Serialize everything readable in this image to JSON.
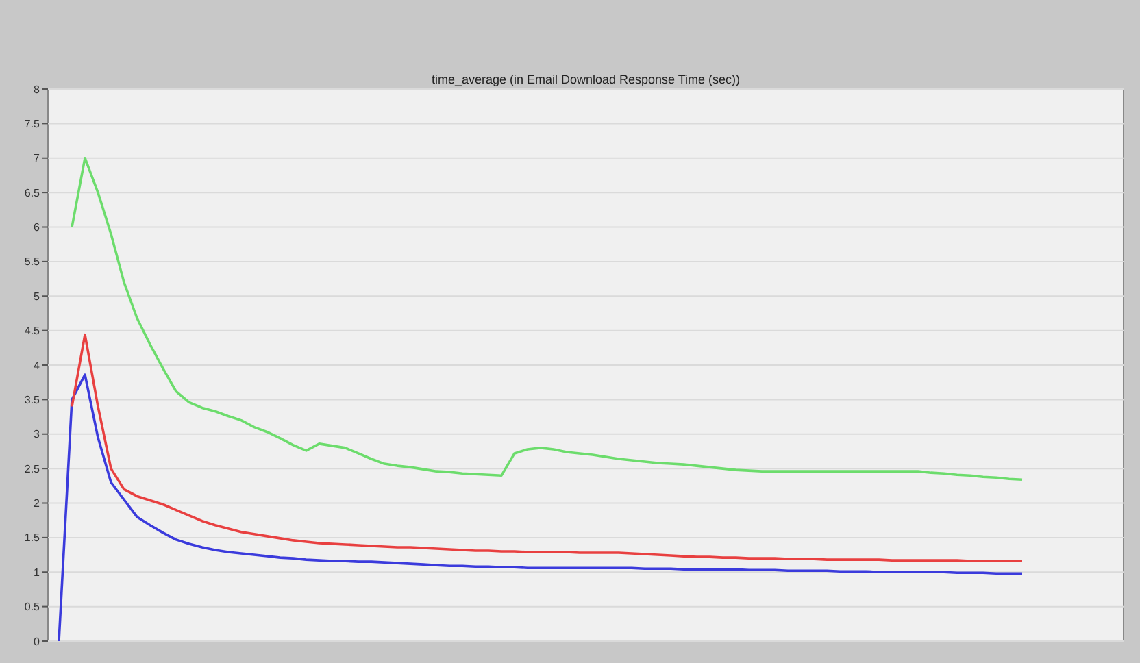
{
  "chart_data": {
    "type": "line",
    "title": "time_average (in Email Download Response Time (sec))",
    "categories": [
      null,
      null,
      null,
      null,
      null,
      null,
      null,
      null,
      null,
      null,
      null,
      null,
      null,
      null,
      null,
      null,
      null,
      null,
      null,
      null,
      null,
      null,
      null,
      null,
      null,
      null,
      null,
      null,
      null,
      null,
      null,
      null,
      null,
      null,
      null,
      null,
      null,
      null,
      null,
      null,
      null,
      null,
      null,
      null,
      null,
      null,
      null,
      null,
      null,
      null,
      null,
      null,
      null,
      null,
      null,
      null,
      null,
      null,
      null,
      null,
      null,
      null,
      null,
      null,
      null,
      null,
      null,
      null,
      null,
      null,
      null,
      null,
      null,
      null,
      null
    ],
    "ylim": [
      0,
      8
    ],
    "yticks": [
      0,
      0.5,
      1,
      1.5,
      2,
      2.5,
      3,
      3.5,
      4,
      4.5,
      5,
      5.5,
      6,
      6.5,
      7,
      7.5,
      8
    ],
    "grid": "y",
    "line_style": "solid",
    "series": [
      {
        "color": "#3b3bdc",
        "values": [
          0,
          3.5,
          3.86,
          2.95,
          2.3,
          2.05,
          1.8,
          1.68,
          1.57,
          1.47,
          1.41,
          1.36,
          1.32,
          1.29,
          1.27,
          1.25,
          1.23,
          1.21,
          1.2,
          1.18,
          1.17,
          1.16,
          1.16,
          1.15,
          1.15,
          1.14,
          1.13,
          1.12,
          1.11,
          1.1,
          1.09,
          1.09,
          1.08,
          1.08,
          1.07,
          1.07,
          1.06,
          1.06,
          1.06,
          1.06,
          1.06,
          1.06,
          1.06,
          1.06,
          1.06,
          1.05,
          1.05,
          1.05,
          1.04,
          1.04,
          1.04,
          1.04,
          1.04,
          1.03,
          1.03,
          1.03,
          1.02,
          1.02,
          1.02,
          1.02,
          1.01,
          1.01,
          1.01,
          1.0,
          1.0,
          1.0,
          1.0,
          1.0,
          1.0,
          0.99,
          0.99,
          0.99,
          0.98,
          0.98,
          0.98
        ]
      },
      {
        "color": "#e84040",
        "values": [
          null,
          3.4,
          4.44,
          3.4,
          2.5,
          2.2,
          2.1,
          2.04,
          1.98,
          1.9,
          1.82,
          1.74,
          1.68,
          1.63,
          1.58,
          1.55,
          1.52,
          1.49,
          1.46,
          1.44,
          1.42,
          1.41,
          1.4,
          1.39,
          1.38,
          1.37,
          1.36,
          1.36,
          1.35,
          1.34,
          1.33,
          1.32,
          1.31,
          1.31,
          1.3,
          1.3,
          1.29,
          1.29,
          1.29,
          1.29,
          1.28,
          1.28,
          1.28,
          1.28,
          1.27,
          1.26,
          1.25,
          1.24,
          1.23,
          1.22,
          1.22,
          1.21,
          1.21,
          1.2,
          1.2,
          1.2,
          1.19,
          1.19,
          1.19,
          1.18,
          1.18,
          1.18,
          1.18,
          1.18,
          1.17,
          1.17,
          1.17,
          1.17,
          1.17,
          1.17,
          1.16,
          1.16,
          1.16,
          1.16,
          1.16
        ]
      },
      {
        "color": "#6cdc6c",
        "values": [
          null,
          6.0,
          7.0,
          6.5,
          5.9,
          5.2,
          4.68,
          4.3,
          3.95,
          3.62,
          3.46,
          3.38,
          3.33,
          3.26,
          3.2,
          3.1,
          3.03,
          2.94,
          2.84,
          2.76,
          2.86,
          2.83,
          2.8,
          2.72,
          2.64,
          2.57,
          2.54,
          2.52,
          2.49,
          2.46,
          2.45,
          2.43,
          2.42,
          2.41,
          2.4,
          2.72,
          2.78,
          2.8,
          2.78,
          2.74,
          2.72,
          2.7,
          2.67,
          2.64,
          2.62,
          2.6,
          2.58,
          2.57,
          2.56,
          2.54,
          2.52,
          2.5,
          2.48,
          2.47,
          2.46,
          2.46,
          2.46,
          2.46,
          2.46,
          2.46,
          2.46,
          2.46,
          2.46,
          2.46,
          2.46,
          2.46,
          2.46,
          2.44,
          2.43,
          2.41,
          2.4,
          2.38,
          2.37,
          2.35,
          2.34
        ]
      }
    ]
  }
}
